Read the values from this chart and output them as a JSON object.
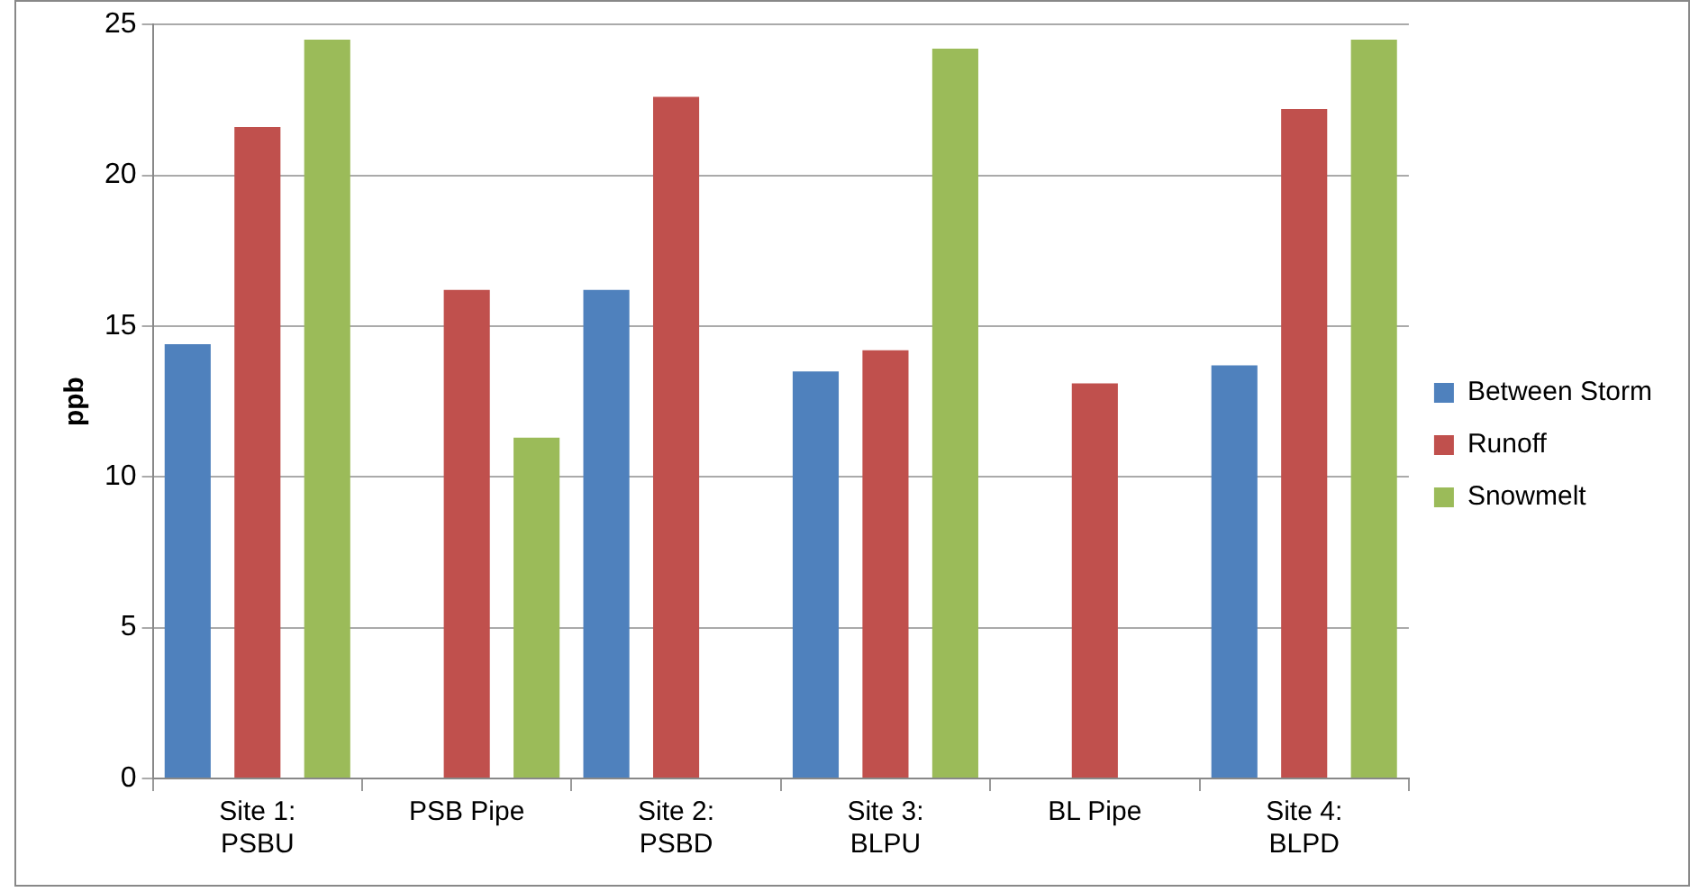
{
  "chart_data": {
    "type": "bar",
    "ylabel": "ppb",
    "categories": [
      "Site 1: PSBU",
      "PSB Pipe",
      "Site 2: PSBD",
      "Site 3: BLPU",
      "BL Pipe",
      "Site 4: BLPD"
    ],
    "series": [
      {
        "name": "Between Storm",
        "color": "#4f81bd",
        "values": [
          14.4,
          null,
          16.2,
          13.5,
          null,
          13.7
        ]
      },
      {
        "name": "Runoff",
        "color": "#c0504d",
        "values": [
          21.6,
          16.2,
          22.6,
          14.2,
          13.1,
          22.2
        ]
      },
      {
        "name": "Snowmelt",
        "color": "#9bbb59",
        "values": [
          24.5,
          11.3,
          null,
          24.2,
          null,
          24.5
        ]
      }
    ],
    "ylim": [
      0,
      25
    ],
    "yticks": [
      0,
      5,
      10,
      15,
      20,
      25
    ],
    "grid": "y",
    "legend": "right"
  }
}
